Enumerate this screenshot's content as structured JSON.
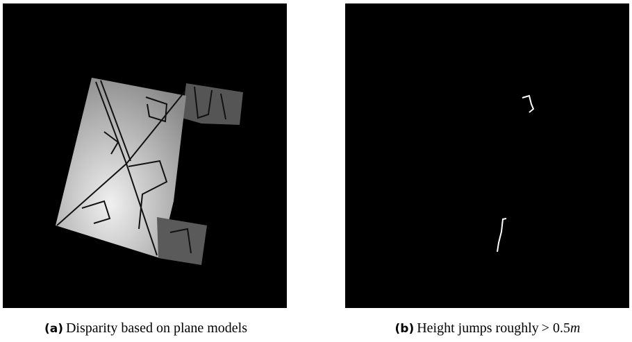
{
  "figures": [
    {
      "label": "(a)",
      "text": "Disparity based on plane models"
    },
    {
      "label": "(b)",
      "text": "Height jumps roughly",
      "math": "> 0.5",
      "unit": "m"
    }
  ]
}
